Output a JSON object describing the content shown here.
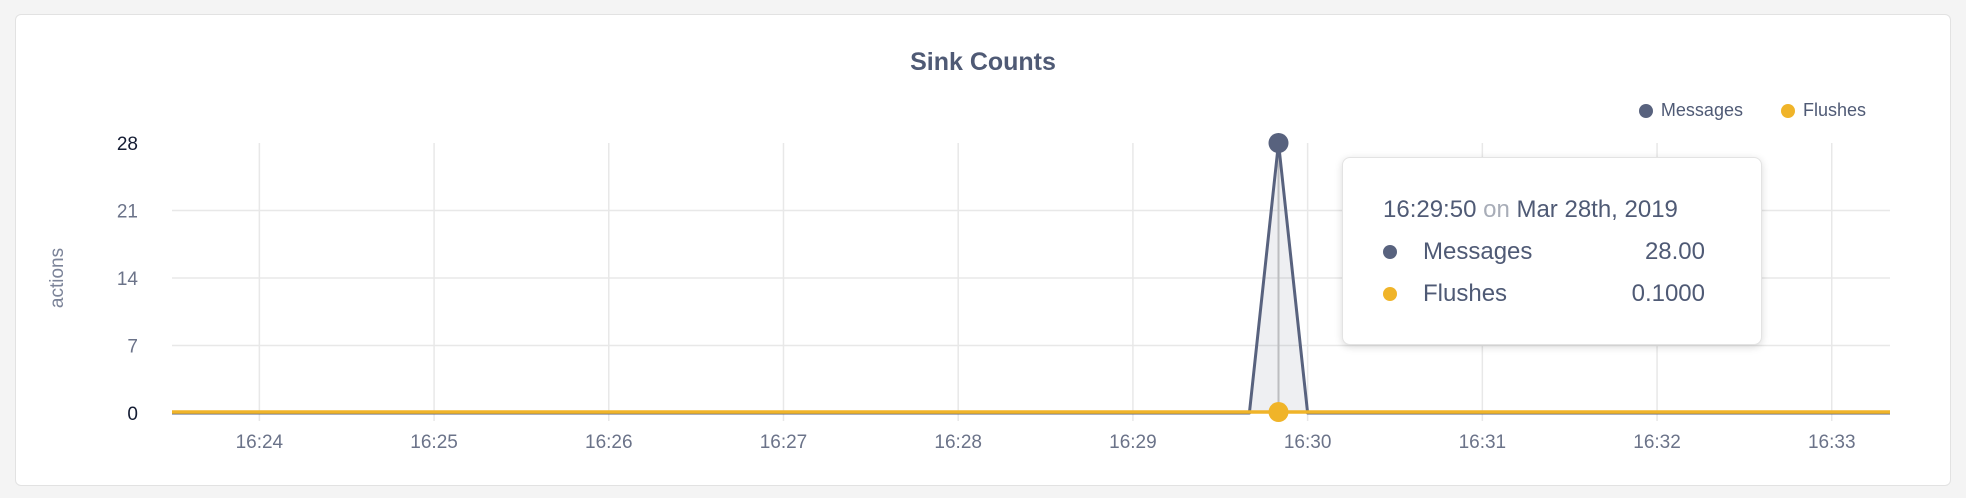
{
  "chart_data": {
    "type": "area",
    "title": "Sink Counts",
    "ylabel": "actions",
    "xlabel": "",
    "ylim": [
      0,
      28
    ],
    "yticks": [
      "0",
      "7",
      "14",
      "21",
      "28"
    ],
    "xlim": [
      "16:23:30",
      "16:33:20"
    ],
    "xticks": [
      "16:24",
      "16:25",
      "16:26",
      "16:27",
      "16:28",
      "16:29",
      "16:30",
      "16:31",
      "16:32",
      "16:33"
    ],
    "grid": true,
    "legend_position": "top-right",
    "series": [
      {
        "name": "Messages",
        "color": "#58627e",
        "points": [
          [
            "16:23:30",
            0
          ],
          [
            "16:29:40",
            0
          ],
          [
            "16:29:50",
            28
          ],
          [
            "16:30:00",
            0
          ],
          [
            "16:33:20",
            0
          ]
        ]
      },
      {
        "name": "Flushes",
        "color": "#f0b429",
        "points": [
          [
            "16:23:30",
            0.1
          ],
          [
            "16:29:50",
            0.1
          ],
          [
            "16:33:20",
            0.1
          ]
        ]
      }
    ],
    "tooltip": {
      "time": "16:29:50",
      "on": "on",
      "date": "Mar 28th, 2019",
      "rows": [
        {
          "name": "Messages",
          "value": "28.00",
          "color": "#58627e"
        },
        {
          "name": "Flushes",
          "value": "0.1000",
          "color": "#f0b429"
        }
      ]
    }
  }
}
